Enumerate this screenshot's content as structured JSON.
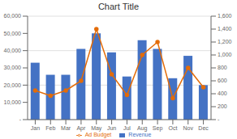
{
  "chart_data": {
    "type": "bar",
    "title": "Chart Title",
    "categories": [
      "Jan",
      "Feb",
      "Mar",
      "Apr",
      "May",
      "Jun",
      "Jul",
      "Aug",
      "Sep",
      "Oct",
      "Nov",
      "Dec"
    ],
    "series": [
      {
        "name": "Revenue",
        "type": "bar",
        "color": "#4472C4",
        "values": [
          33000,
          26000,
          26000,
          41000,
          50000,
          39000,
          25000,
          46000,
          41000,
          24000,
          37000,
          20000
        ]
      },
      {
        "name": "Ad Budget",
        "type": "line",
        "axis": "y2",
        "color": "#E36C09",
        "marker": "circle",
        "values": [
          450,
          370,
          450,
          600,
          1400,
          700,
          380,
          1000,
          1200,
          330,
          800,
          500
        ]
      }
    ],
    "ylim": [
      0,
      60000
    ],
    "yticks": [
      {
        "value": 0,
        "label": "-"
      },
      {
        "value": 10000,
        "label": "10,000"
      },
      {
        "value": 20000,
        "label": "20,000"
      },
      {
        "value": 30000,
        "label": "30,000"
      },
      {
        "value": 40000,
        "label": "40,000"
      },
      {
        "value": 50000,
        "label": "50,000"
      },
      {
        "value": 60000,
        "label": "60,000"
      }
    ],
    "y2lim": [
      0,
      1600
    ],
    "y2ticks": [
      {
        "value": 0,
        "label": "-"
      },
      {
        "value": 200,
        "label": "200"
      },
      {
        "value": 400,
        "label": "400"
      },
      {
        "value": 600,
        "label": "600"
      },
      {
        "value": 800,
        "label": "800"
      },
      {
        "value": 1000,
        "label": "1,000"
      },
      {
        "value": 1200,
        "label": "1,200"
      },
      {
        "value": 1400,
        "label": "1,400"
      },
      {
        "value": 1600,
        "label": "1,600"
      }
    ],
    "grid": true,
    "legend": "bottom"
  }
}
